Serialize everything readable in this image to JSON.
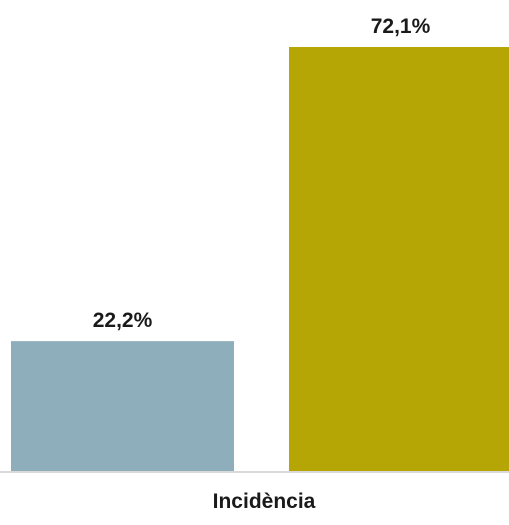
{
  "chart_data": {
    "type": "bar",
    "categories": [
      "Incidència"
    ],
    "series": [
      {
        "values": [
          22.2
        ],
        "label": "22,2%",
        "color": "#8eaebc"
      },
      {
        "values": [
          72.1
        ],
        "label": "72,1%",
        "color": "#b5a605"
      }
    ],
    "ylim": [
      0,
      72.1
    ],
    "grid": false,
    "legend": "none",
    "axis_color": "#d9d9d9"
  }
}
